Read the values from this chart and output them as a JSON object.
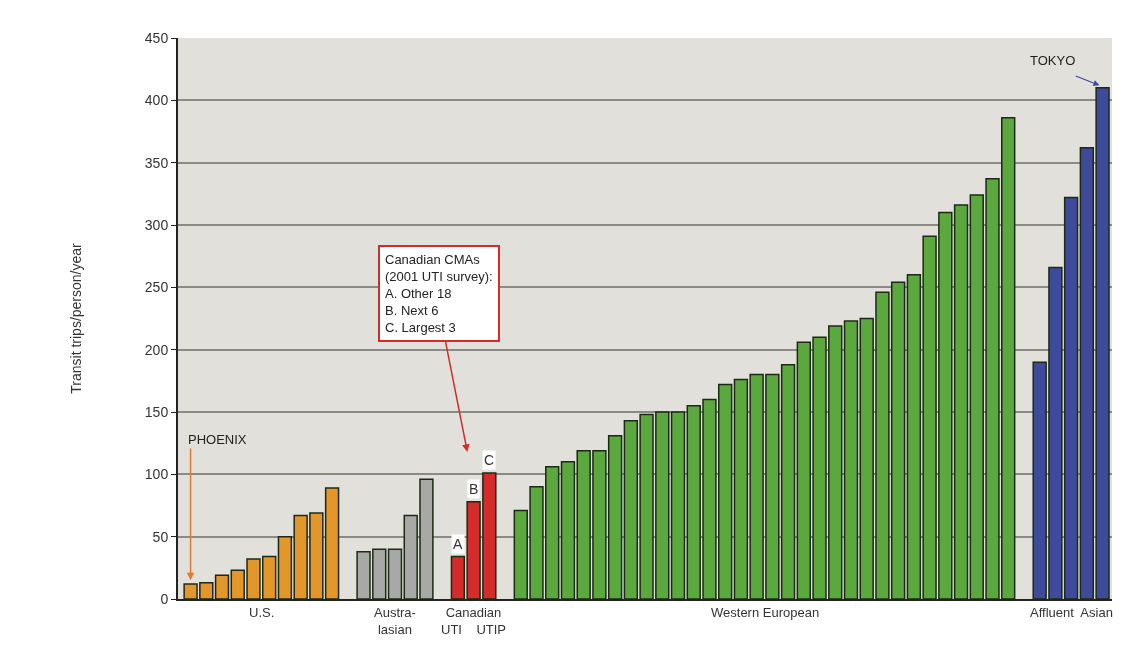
{
  "chart_data": {
    "type": "bar",
    "ylabel": "Transit trips/person/year",
    "categories": [
      null,
      null,
      null,
      null,
      null,
      null,
      null,
      null,
      null,
      null,
      null,
      null,
      null,
      null,
      null,
      null,
      null,
      null,
      null,
      null,
      null,
      null,
      null,
      null,
      null,
      null,
      null,
      null,
      null,
      null,
      null,
      null,
      null,
      null,
      null,
      null,
      null,
      null,
      null,
      null,
      null,
      null,
      null,
      null,
      null,
      null,
      null,
      null,
      null,
      null,
      null,
      null,
      null,
      null,
      null,
      null,
      null,
      null,
      null
    ],
    "series": [
      {
        "name": "U.S.",
        "color": "#e3962a",
        "values": [
          12,
          13,
          19,
          23,
          32,
          34,
          50,
          67,
          69,
          89,
          null,
          null,
          null,
          null,
          null,
          null,
          null,
          null,
          null,
          null,
          null,
          null,
          null,
          null,
          null,
          null,
          null,
          null,
          null,
          null,
          null,
          null,
          null,
          null,
          null,
          null,
          null,
          null,
          null,
          null,
          null,
          null,
          null,
          null,
          null,
          null,
          null,
          null,
          null,
          null,
          null,
          null,
          null,
          null,
          null,
          null,
          null,
          null,
          null
        ]
      },
      {
        "name": "Austra-\nlasian",
        "color": "#a8a8a6",
        "values": [
          null,
          null,
          null,
          null,
          null,
          null,
          null,
          null,
          null,
          null,
          null,
          38,
          40,
          40,
          67,
          96,
          null,
          null,
          null,
          null,
          null,
          null,
          null,
          null,
          null,
          null,
          null,
          null,
          null,
          null,
          null,
          null,
          null,
          null,
          null,
          null,
          null,
          null,
          null,
          null,
          null,
          null,
          null,
          null,
          null,
          null,
          null,
          null,
          null,
          null,
          null,
          null,
          null,
          null,
          null,
          null,
          null,
          null,
          null
        ]
      },
      {
        "name": "Canadian\nUTI    UTIP",
        "color": "#d42b2b",
        "values": [
          null,
          null,
          null,
          null,
          null,
          null,
          null,
          null,
          null,
          null,
          null,
          null,
          null,
          null,
          null,
          null,
          null,
          34,
          78,
          101,
          null,
          null,
          null,
          null,
          null,
          null,
          null,
          null,
          null,
          null,
          null,
          null,
          null,
          null,
          null,
          null,
          null,
          null,
          null,
          null,
          null,
          null,
          null,
          null,
          null,
          null,
          null,
          null,
          null,
          null,
          null,
          null,
          null,
          null,
          null,
          null,
          null,
          null,
          null
        ]
      },
      {
        "name": "Western European",
        "color": "#5aa83e",
        "values": [
          null,
          null,
          null,
          null,
          null,
          null,
          null,
          null,
          null,
          null,
          null,
          null,
          null,
          null,
          null,
          null,
          null,
          null,
          null,
          null,
          null,
          71,
          90,
          106,
          110,
          119,
          119,
          131,
          143,
          148,
          150,
          150,
          155,
          160,
          172,
          176,
          180,
          180,
          188,
          206,
          210,
          219,
          223,
          225,
          246,
          254,
          260,
          291,
          310,
          316,
          324,
          337,
          386,
          null,
          null,
          null,
          null,
          null,
          null
        ]
      },
      {
        "name": "Affluent  Asian",
        "color": "#3e4a9a",
        "values": [
          null,
          null,
          null,
          null,
          null,
          null,
          null,
          null,
          null,
          null,
          null,
          null,
          null,
          null,
          null,
          null,
          null,
          null,
          null,
          null,
          null,
          null,
          null,
          null,
          null,
          null,
          null,
          null,
          null,
          null,
          null,
          null,
          null,
          null,
          null,
          null,
          null,
          null,
          null,
          null,
          null,
          null,
          null,
          null,
          null,
          null,
          null,
          null,
          null,
          null,
          null,
          null,
          null,
          null,
          190,
          266,
          322,
          362,
          410
        ]
      }
    ],
    "ylim": [
      0,
      450
    ],
    "yticks": [
      0,
      50,
      100,
      150,
      200,
      250,
      300,
      350,
      400,
      450
    ],
    "grid": "y",
    "annotations": [
      "PHOENIX",
      "TOKYO",
      "Canadian CMAs\n(2001 UTI survey):\nA. Other 18\nB. Next 6\nC. Largest 3",
      "A",
      "B",
      "C"
    ]
  }
}
